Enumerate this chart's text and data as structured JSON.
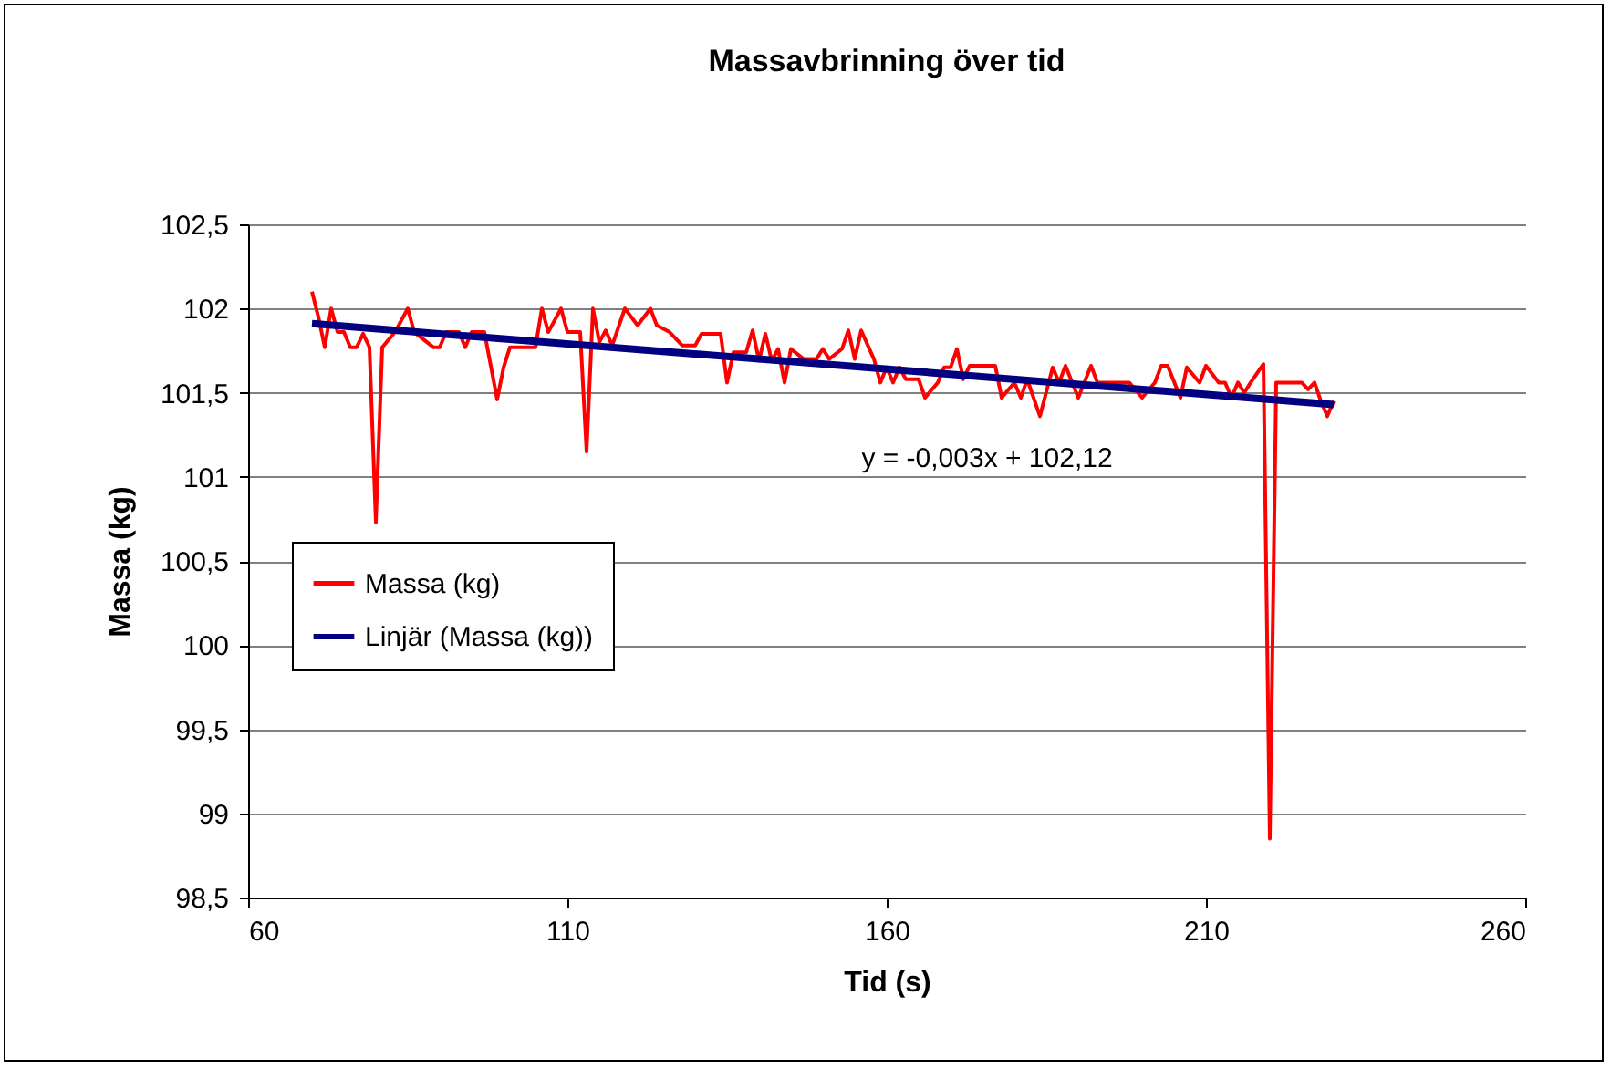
{
  "chart_data": {
    "type": "line",
    "title": "Massavbrinning över tid",
    "xlabel": "Tid (s)",
    "ylabel": "Massa (kg)",
    "xlim": [
      60,
      260
    ],
    "xticks": [
      60,
      110,
      160,
      210,
      260
    ],
    "ylim": [
      98.5,
      102.5
    ],
    "yticks": [
      {
        "value": 98.5,
        "label": "98,5"
      },
      99,
      {
        "value": 99.5,
        "label": "99,5"
      },
      100,
      {
        "value": 100.5,
        "label": "100,5"
      },
      101,
      {
        "value": 101.5,
        "label": "101,5"
      },
      102,
      {
        "value": 102.5,
        "label": "102,5"
      }
    ],
    "grid": "y",
    "legend": "left",
    "marker": "none",
    "series": [
      {
        "name": "Massa (kg)",
        "color": "#ff0000",
        "x": [
          70,
          71,
          72,
          73,
          74,
          75,
          76,
          77,
          78,
          79,
          80,
          81,
          83,
          85,
          86,
          89,
          90,
          91,
          93,
          94,
          95,
          97,
          99,
          100,
          101,
          105,
          106,
          107,
          109,
          110,
          112,
          113,
          114,
          115,
          116,
          117,
          119,
          121,
          123,
          124,
          126,
          128,
          130,
          131,
          133,
          134,
          135,
          136,
          138,
          139,
          140,
          141,
          142,
          143,
          144,
          145,
          147,
          149,
          150,
          151,
          153,
          154,
          155,
          156,
          158,
          159,
          160,
          161,
          162,
          163,
          165,
          166,
          168,
          169,
          170,
          171,
          172,
          173,
          177,
          178,
          180,
          181,
          182,
          184,
          186,
          187,
          188,
          190,
          192,
          193,
          196,
          198,
          200,
          202,
          203,
          204,
          206,
          207,
          209,
          210,
          212,
          213,
          214,
          215,
          216,
          217,
          219,
          220,
          221,
          225,
          226,
          227,
          228,
          229,
          230
        ],
        "values": [
          102.1,
          101.95,
          101.77,
          102.0,
          101.86,
          101.86,
          101.77,
          101.77,
          101.85,
          101.77,
          100.73,
          101.77,
          101.86,
          102.0,
          101.86,
          101.77,
          101.77,
          101.86,
          101.86,
          101.77,
          101.86,
          101.86,
          101.46,
          101.65,
          101.77,
          101.77,
          102.0,
          101.86,
          102.0,
          101.86,
          101.86,
          101.15,
          102.0,
          101.8,
          101.87,
          101.78,
          102.0,
          101.9,
          102.0,
          101.9,
          101.86,
          101.78,
          101.78,
          101.85,
          101.85,
          101.85,
          101.56,
          101.74,
          101.74,
          101.87,
          101.69,
          101.85,
          101.69,
          101.76,
          101.56,
          101.76,
          101.7,
          101.7,
          101.76,
          101.7,
          101.76,
          101.87,
          101.7,
          101.87,
          101.7,
          101.56,
          101.65,
          101.56,
          101.65,
          101.58,
          101.58,
          101.47,
          101.56,
          101.65,
          101.65,
          101.76,
          101.58,
          101.66,
          101.66,
          101.47,
          101.56,
          101.47,
          101.58,
          101.36,
          101.65,
          101.56,
          101.66,
          101.47,
          101.66,
          101.56,
          101.56,
          101.56,
          101.47,
          101.56,
          101.66,
          101.66,
          101.47,
          101.65,
          101.56,
          101.66,
          101.56,
          101.56,
          101.47,
          101.56,
          101.5,
          101.56,
          101.67,
          98.85,
          101.56,
          101.56,
          101.52,
          101.56,
          101.45,
          101.36,
          101.45
        ]
      },
      {
        "name": "Linjär (Massa (kg))",
        "color": "#000080",
        "x": [
          70,
          230
        ],
        "values": [
          101.91,
          101.43
        ]
      }
    ],
    "annotations": [
      "y = -0,003x + 102,12"
    ]
  }
}
